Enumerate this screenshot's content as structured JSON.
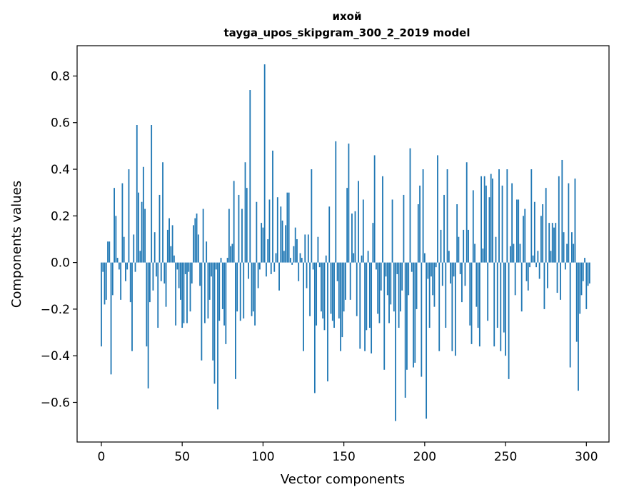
{
  "chart_data": {
    "type": "bar",
    "title": "ихой",
    "subtitle": "tayga_upos_skipgram_300_2_2019 model",
    "xlabel": "Vector components",
    "ylabel": "Components values",
    "xlim": [
      -15,
      314
    ],
    "ylim": [
      -0.77,
      0.93
    ],
    "xticks": [
      0,
      50,
      100,
      150,
      200,
      250,
      300
    ],
    "xtick_labels": [
      "0",
      "50",
      "100",
      "150",
      "200",
      "250",
      "300"
    ],
    "yticks": [
      -0.6,
      -0.4,
      -0.2,
      0.0,
      0.2,
      0.4,
      0.6,
      0.8
    ],
    "ytick_labels": [
      "−0.6",
      "−0.4",
      "−0.2",
      "0.0",
      "0.2",
      "0.4",
      "0.6",
      "0.8"
    ],
    "grid": false,
    "bar_color": "#1f77b4",
    "values": [
      -0.36,
      -0.04,
      -0.18,
      -0.16,
      0.09,
      0.09,
      -0.48,
      -0.14,
      0.32,
      0.2,
      0.02,
      -0.03,
      -0.16,
      0.34,
      0.11,
      -0.08,
      -0.03,
      0.4,
      -0.17,
      -0.38,
      0.12,
      -0.04,
      0.59,
      0.3,
      0.05,
      0.26,
      0.41,
      0.23,
      -0.36,
      -0.54,
      -0.17,
      0.59,
      -0.12,
      0.13,
      -0.06,
      -0.28,
      0.29,
      -0.08,
      0.43,
      -0.09,
      -0.19,
      0.14,
      0.19,
      0.07,
      0.16,
      0.03,
      -0.27,
      -0.03,
      -0.11,
      -0.16,
      -0.28,
      -0.26,
      -0.05,
      -0.26,
      -0.04,
      -0.21,
      -0.09,
      0.16,
      0.19,
      0.21,
      0.12,
      -0.1,
      -0.42,
      0.23,
      -0.26,
      0.09,
      -0.24,
      -0.16,
      -0.06,
      -0.42,
      -0.52,
      -0.03,
      -0.63,
      -0.25,
      0.02,
      -0.2,
      -0.27,
      -0.35,
      0.02,
      0.23,
      0.07,
      0.08,
      0.35,
      -0.5,
      -0.21,
      0.29,
      -0.25,
      0.23,
      -0.24,
      0.43,
      0.32,
      -0.07,
      0.74,
      -0.23,
      -0.21,
      -0.27,
      0.26,
      -0.11,
      -0.03,
      0.17,
      0.15,
      0.85,
      -0.06,
      0.1,
      0.27,
      -0.05,
      0.48,
      -0.04,
      0.04,
      0.28,
      -0.12,
      0.24,
      0.18,
      0.05,
      0.16,
      0.3,
      0.3,
      0.02,
      -0.01,
      0.07,
      0.15,
      0.1,
      -0.08,
      0.04,
      0.02,
      -0.38,
      0.12,
      -0.11,
      0.12,
      -0.23,
      0.4,
      -0.03,
      -0.56,
      -0.27,
      0.11,
      -0.02,
      -0.21,
      -0.24,
      -0.29,
      0.03,
      -0.51,
      0.24,
      -0.22,
      -0.25,
      -0.28,
      0.52,
      -0.08,
      -0.24,
      -0.38,
      -0.32,
      -0.21,
      -0.16,
      0.32,
      0.51,
      -0.16,
      0.21,
      0.04,
      0.22,
      -0.23,
      0.35,
      -0.37,
      0.03,
      0.27,
      -0.38,
      -0.29,
      0.05,
      -0.28,
      -0.39,
      0.17,
      0.46,
      -0.03,
      -0.22,
      -0.26,
      -0.12,
      0.37,
      -0.46,
      -0.06,
      -0.14,
      -0.26,
      -0.18,
      0.27,
      -0.21,
      -0.68,
      -0.05,
      -0.28,
      -0.21,
      -0.12,
      0.29,
      -0.58,
      -0.46,
      -0.14,
      0.49,
      -0.04,
      -0.45,
      -0.43,
      -0.2,
      0.25,
      0.33,
      -0.49,
      0.4,
      0.04,
      -0.67,
      -0.07,
      -0.28,
      -0.06,
      -0.14,
      -0.19,
      -0.02,
      0.46,
      -0.38,
      0.14,
      -0.1,
      0.29,
      -0.28,
      0.4,
      0.05,
      -0.09,
      -0.38,
      -0.06,
      -0.4,
      0.25,
      0.11,
      -0.05,
      -0.17,
      0.14,
      -0.1,
      0.43,
      0.14,
      -0.27,
      -0.35,
      0.31,
      0.08,
      -0.19,
      -0.28,
      -0.36,
      0.37,
      0.06,
      0.37,
      0.33,
      -0.25,
      0.28,
      0.38,
      0.36,
      -0.36,
      0.11,
      -0.28,
      0.4,
      -0.38,
      0.33,
      -0.3,
      -0.4,
      0.4,
      -0.5,
      0.07,
      0.34,
      0.08,
      -0.14,
      0.27,
      0.27,
      0.08,
      -0.21,
      0.2,
      0.23,
      -0.08,
      -0.12,
      -0.02,
      0.4,
      0.03,
      0.26,
      -0.02,
      0.05,
      -0.07,
      0.2,
      0.25,
      -0.2,
      0.32,
      -0.11,
      0.17,
      0.05,
      0.17,
      0.15,
      0.17,
      -0.13,
      0.37,
      -0.16,
      0.44,
      0.13,
      -0.03,
      0.08,
      0.34,
      -0.45,
      0.13,
      0.08,
      0.36,
      -0.34,
      -0.55,
      -0.22,
      -0.14,
      -0.08,
      0.02,
      -0.2,
      -0.1,
      -0.09
    ]
  }
}
